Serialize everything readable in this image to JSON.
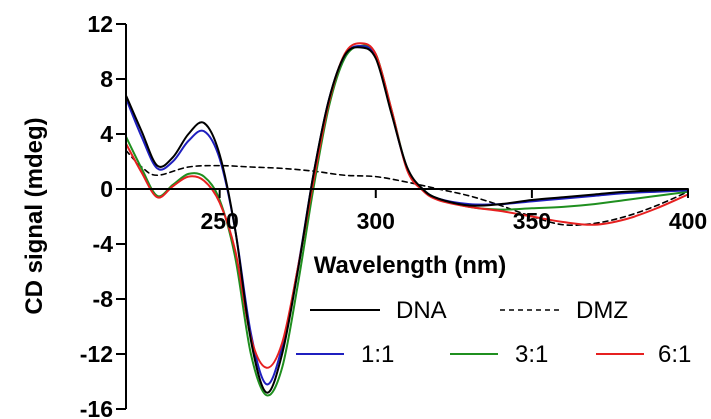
{
  "chart_data": {
    "type": "line",
    "title": "",
    "xlabel": "Wavelength (nm)",
    "ylabel": "CD signal (mdeg)",
    "xlim": [
      220,
      400
    ],
    "ylim": [
      -16,
      12
    ],
    "x_ticks": [
      250,
      300,
      350,
      400
    ],
    "x_tick_labels": [
      "250",
      "300",
      "350",
      "400"
    ],
    "y_ticks": [
      -16,
      -12,
      -8,
      -4,
      0,
      4,
      8,
      12
    ],
    "y_tick_labels": [
      "-16",
      "-12",
      "-8",
      "-4",
      "0",
      "4",
      "8",
      "12"
    ],
    "grid": false,
    "legend_position": "bottom-right",
    "series": [
      {
        "name": "DNA",
        "color": "#000000",
        "dash": "solid",
        "x": [
          220,
          225,
          230,
          235,
          240,
          245,
          250,
          255,
          260,
          265,
          270,
          275,
          280,
          285,
          290,
          295,
          300,
          305,
          310,
          315,
          320,
          330,
          340,
          350,
          360,
          370,
          380,
          390,
          400
        ],
        "y": [
          6.8,
          4.2,
          1.7,
          2.3,
          4.0,
          4.8,
          2.5,
          -3.0,
          -11.0,
          -14.8,
          -12.0,
          -6.0,
          1.0,
          6.5,
          9.7,
          10.3,
          9.5,
          5.5,
          1.6,
          0.0,
          -0.7,
          -1.2,
          -1.1,
          -0.8,
          -0.6,
          -0.4,
          -0.2,
          -0.1,
          0.0
        ]
      },
      {
        "name": "DMZ",
        "color": "#000000",
        "dash": "dashed",
        "x": [
          220,
          225,
          230,
          240,
          250,
          260,
          270,
          280,
          290,
          300,
          310,
          320,
          330,
          340,
          350,
          360,
          370,
          380,
          390,
          400
        ],
        "y": [
          2.8,
          1.6,
          1.0,
          1.6,
          1.7,
          1.6,
          1.5,
          1.3,
          1.0,
          0.9,
          0.5,
          0.0,
          -0.5,
          -1.2,
          -2.0,
          -2.6,
          -2.5,
          -2.0,
          -1.2,
          -0.2
        ]
      },
      {
        "name": "1:1",
        "color": "#1f1fbf",
        "dash": "solid",
        "x": [
          220,
          225,
          230,
          235,
          240,
          245,
          250,
          255,
          260,
          265,
          270,
          275,
          280,
          285,
          290,
          295,
          300,
          305,
          310,
          315,
          320,
          330,
          340,
          350,
          360,
          370,
          380,
          390,
          400
        ],
        "y": [
          6.6,
          3.8,
          1.5,
          2.0,
          3.5,
          4.2,
          2.2,
          -3.0,
          -10.5,
          -14.2,
          -11.5,
          -5.8,
          1.0,
          6.5,
          9.7,
          10.4,
          9.6,
          5.6,
          1.5,
          0.0,
          -0.7,
          -1.1,
          -1.1,
          -0.9,
          -0.7,
          -0.5,
          -0.3,
          -0.2,
          -0.1
        ]
      },
      {
        "name": "3:1",
        "color": "#1f8f1f",
        "dash": "solid",
        "x": [
          220,
          225,
          230,
          235,
          240,
          245,
          250,
          255,
          260,
          265,
          270,
          275,
          280,
          285,
          290,
          295,
          300,
          305,
          310,
          315,
          320,
          330,
          340,
          350,
          360,
          370,
          380,
          390,
          400
        ],
        "y": [
          3.8,
          1.5,
          -0.5,
          0.3,
          1.1,
          0.9,
          -0.8,
          -5.0,
          -12.0,
          -15.0,
          -13.0,
          -7.0,
          0.0,
          6.0,
          9.5,
          10.4,
          9.8,
          5.8,
          1.5,
          0.0,
          -0.7,
          -1.3,
          -1.5,
          -1.4,
          -1.3,
          -1.1,
          -0.8,
          -0.5,
          -0.2
        ]
      },
      {
        "name": "6:1",
        "color": "#e62020",
        "dash": "solid",
        "x": [
          220,
          225,
          230,
          235,
          240,
          245,
          250,
          255,
          260,
          265,
          270,
          275,
          280,
          285,
          290,
          295,
          300,
          305,
          310,
          315,
          320,
          330,
          340,
          350,
          360,
          370,
          380,
          390,
          400
        ],
        "y": [
          3.3,
          1.2,
          -0.6,
          0.2,
          0.9,
          0.6,
          -1.0,
          -4.5,
          -10.8,
          -13.0,
          -11.2,
          -5.8,
          0.5,
          6.3,
          9.8,
          10.6,
          9.8,
          5.8,
          1.4,
          -0.1,
          -0.8,
          -1.3,
          -1.6,
          -2.0,
          -2.4,
          -2.6,
          -2.2,
          -1.4,
          -0.4
        ]
      }
    ]
  }
}
